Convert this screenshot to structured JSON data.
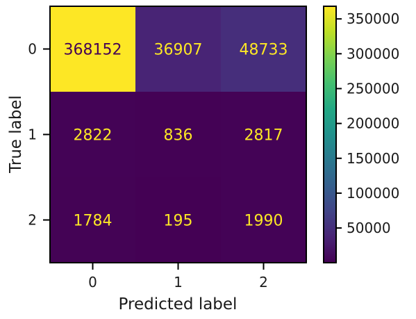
{
  "chart_data": {
    "type": "heatmap",
    "title": "",
    "xlabel": "Predicted label",
    "ylabel": "True label",
    "x_categories": [
      "0",
      "1",
      "2"
    ],
    "y_categories": [
      "0",
      "1",
      "2"
    ],
    "values": [
      [
        368152,
        36907,
        48733
      ],
      [
        2822,
        836,
        2817
      ],
      [
        1784,
        195,
        1990
      ]
    ],
    "value_labels": [
      [
        "368152",
        "36907",
        "48733"
      ],
      [
        "2822",
        "836",
        "2817"
      ],
      [
        "1784",
        "195",
        "1990"
      ]
    ],
    "colormap": "viridis",
    "colorbar": {
      "range": [
        195,
        368152
      ],
      "ticks": [
        50000,
        100000,
        150000,
        200000,
        250000,
        300000,
        350000
      ],
      "tick_labels": [
        "50000",
        "100000",
        "150000",
        "200000",
        "250000",
        "300000",
        "350000"
      ]
    },
    "text_colors": {
      "dark_cell": "#fde725",
      "light_cell": "#440154"
    }
  }
}
